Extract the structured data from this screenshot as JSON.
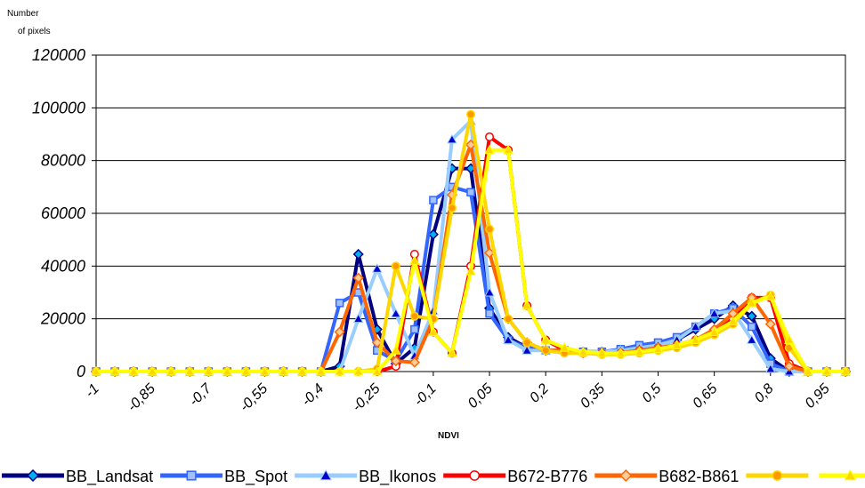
{
  "chart_data": {
    "type": "line",
    "ylabel_line1": "Number",
    "ylabel_line2": "of pixels",
    "xlabel": "NDVI",
    "ylim": [
      0,
      120000
    ],
    "y_ticks": [
      "0",
      "20000",
      "40000",
      "60000",
      "80000",
      "100000",
      "120000"
    ],
    "x_tick_labels": [
      "-1",
      "-0,85",
      "-0,7",
      "-0,55",
      "-0,4",
      "-0,25",
      "-0,1",
      "0,05",
      "0,2",
      "0,35",
      "0,5",
      "0,65",
      "0,8",
      "0,95"
    ],
    "x": [
      -1,
      -0.95,
      -0.9,
      -0.85,
      -0.8,
      -0.75,
      -0.7,
      -0.65,
      -0.6,
      -0.55,
      -0.5,
      -0.45,
      -0.4,
      -0.35,
      -0.3,
      -0.25,
      -0.2,
      -0.15,
      -0.1,
      -0.05,
      0,
      0.05,
      0.1,
      0.15,
      0.2,
      0.25,
      0.3,
      0.35,
      0.4,
      0.45,
      0.5,
      0.55,
      0.6,
      0.65,
      0.7,
      0.75,
      0.8,
      0.85,
      0.9,
      0.95,
      1
    ],
    "grid": "horizontal",
    "legend_position": "bottom",
    "series": [
      {
        "name": "BB_Landsat",
        "color": "#000080",
        "marker": "diamond",
        "marker_fill": "#00b0f0",
        "values": [
          0,
          0,
          0,
          0,
          0,
          0,
          0,
          0,
          0,
          0,
          0,
          0,
          0,
          2000,
          44500,
          16000,
          3000,
          9000,
          52000,
          77000,
          77000,
          24000,
          13000,
          9000,
          8000,
          8000,
          7500,
          7500,
          8000,
          9000,
          10000,
          12000,
          16000,
          20000,
          25000,
          21000,
          5000,
          0,
          0,
          0,
          0
        ]
      },
      {
        "name": "BB_Spot",
        "color": "#3366ff",
        "marker": "square",
        "marker_fill": "#a0c0ff",
        "values": [
          0,
          0,
          0,
          0,
          0,
          0,
          0,
          0,
          0,
          0,
          0,
          0,
          0,
          26000,
          30000,
          8000,
          4000,
          16000,
          65000,
          70000,
          68000,
          22000,
          12000,
          9000,
          8000,
          8000,
          7500,
          7500,
          8500,
          10000,
          11000,
          13000,
          17000,
          22000,
          24000,
          17000,
          3000,
          0,
          0,
          0,
          0
        ]
      },
      {
        "name": "BB_Ikonos",
        "color": "#99ccff",
        "marker": "triangle",
        "marker_fill": "#0000cc",
        "values": [
          0,
          0,
          0,
          0,
          0,
          0,
          0,
          0,
          0,
          0,
          0,
          0,
          0,
          0,
          20000,
          39000,
          22000,
          6000,
          23000,
          88000,
          95000,
          30000,
          12000,
          8000,
          8000,
          8000,
          7500,
          7500,
          8000,
          9000,
          10000,
          12000,
          17000,
          22000,
          23000,
          12000,
          1000,
          0,
          0,
          0,
          0
        ]
      },
      {
        "name": "B672-B776",
        "color": "#ff0000",
        "marker": "circle",
        "marker_fill": "#ffffff",
        "values": [
          0,
          0,
          0,
          0,
          0,
          0,
          0,
          0,
          0,
          0,
          0,
          0,
          0,
          0,
          0,
          0,
          2000,
          44500,
          15000,
          7000,
          40000,
          89000,
          84000,
          25000,
          12000,
          8000,
          7000,
          7000,
          7000,
          8000,
          9000,
          10000,
          12000,
          15000,
          20000,
          28000,
          28000,
          3000,
          0,
          0,
          0
        ]
      },
      {
        "name": "B682-B861",
        "color": "#ff6600",
        "marker": "diamond",
        "marker_fill": "#ffcc99",
        "values": [
          0,
          0,
          0,
          0,
          0,
          0,
          0,
          0,
          0,
          0,
          0,
          0,
          0,
          15000,
          35500,
          11000,
          4000,
          3500,
          20000,
          67000,
          86000,
          45000,
          20000,
          11000,
          8000,
          8000,
          7000,
          7000,
          7000,
          8000,
          9000,
          10000,
          12000,
          16000,
          22000,
          28000,
          18000,
          2000,
          0,
          0,
          0
        ]
      },
      {
        "name": "",
        "color": "#ffd700",
        "marker": "circle",
        "marker_fill": "#ff9900",
        "values": [
          0,
          0,
          0,
          0,
          0,
          0,
          0,
          0,
          0,
          0,
          0,
          0,
          0,
          0,
          0,
          1000,
          40000,
          21000,
          20000,
          62000,
          97500,
          54000,
          20000,
          11000,
          8000,
          7000,
          7000,
          6500,
          6500,
          7000,
          8000,
          9000,
          11000,
          14000,
          18000,
          26000,
          29000,
          9000,
          0,
          0,
          0
        ]
      },
      {
        "name": "",
        "color": "#ffff00",
        "marker": "triangle",
        "marker_fill": "#ffd700",
        "values": [
          0,
          0,
          0,
          0,
          0,
          0,
          0,
          0,
          0,
          0,
          0,
          0,
          0,
          0,
          0,
          0,
          8000,
          42000,
          15000,
          7000,
          38000,
          84000,
          84000,
          25000,
          12000,
          9000,
          7500,
          7000,
          7000,
          7500,
          8500,
          10000,
          12000,
          15000,
          19000,
          26000,
          28500,
          12000,
          0,
          0,
          0
        ]
      }
    ]
  }
}
